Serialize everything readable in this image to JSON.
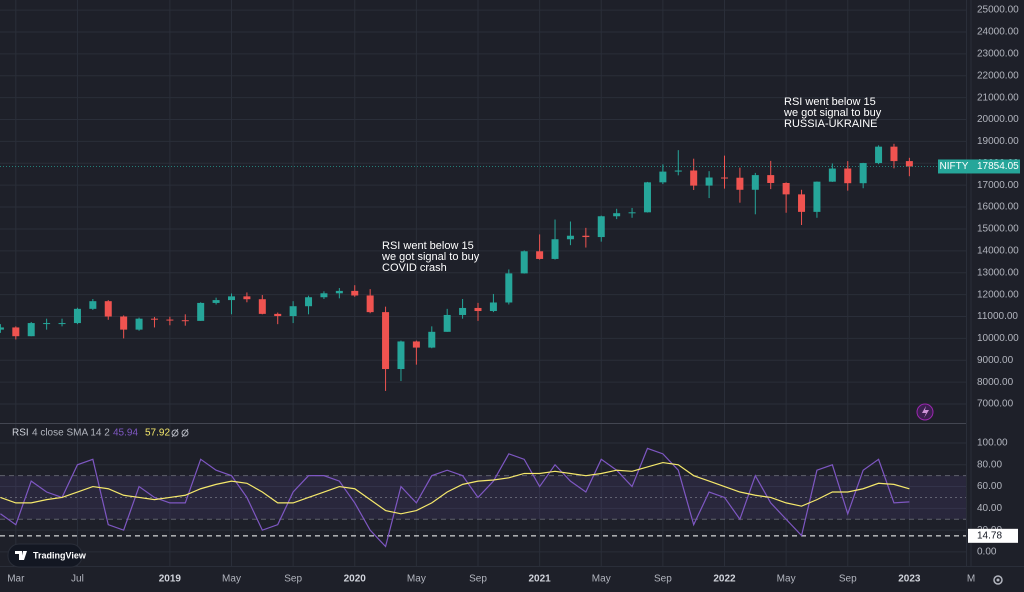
{
  "chart_data": {
    "type": "candlestick",
    "symbol": "NIFTY",
    "x": [
      "2018-02",
      "2018-03",
      "2018-04",
      "2018-05",
      "2018-06",
      "2018-07",
      "2018-08",
      "2018-09",
      "2018-10",
      "2018-11",
      "2018-12",
      "2019-01",
      "2019-02",
      "2019-03",
      "2019-04",
      "2019-05",
      "2019-06",
      "2019-07",
      "2019-08",
      "2019-09",
      "2019-10",
      "2019-11",
      "2019-12",
      "2020-01",
      "2020-02",
      "2020-03",
      "2020-04",
      "2020-05",
      "2020-06",
      "2020-07",
      "2020-08",
      "2020-09",
      "2020-10",
      "2020-11",
      "2020-12",
      "2021-01",
      "2021-02",
      "2021-03",
      "2021-04",
      "2021-05",
      "2021-06",
      "2021-07",
      "2021-08",
      "2021-09",
      "2021-10",
      "2021-11",
      "2021-12",
      "2022-01",
      "2022-02",
      "2022-03",
      "2022-04",
      "2022-05",
      "2022-06",
      "2022-07",
      "2022-08",
      "2022-09",
      "2022-10",
      "2022-11",
      "2022-12",
      "2023-01"
    ],
    "candles": [
      [
        10400,
        10650,
        10250,
        10500
      ],
      [
        10500,
        10550,
        9950,
        10100
      ],
      [
        10100,
        10750,
        10100,
        10700
      ],
      [
        10700,
        10900,
        10400,
        10700
      ],
      [
        10700,
        10900,
        10550,
        10700
      ],
      [
        10700,
        11400,
        10650,
        11350
      ],
      [
        11350,
        11800,
        11300,
        11700
      ],
      [
        11700,
        11750,
        10850,
        11000
      ],
      [
        11000,
        11050,
        10000,
        10400
      ],
      [
        10400,
        10950,
        10350,
        10900
      ],
      [
        10900,
        10980,
        10500,
        10860
      ],
      [
        10860,
        10990,
        10600,
        10830
      ],
      [
        10830,
        11100,
        10580,
        10800
      ],
      [
        10800,
        11650,
        10800,
        11620
      ],
      [
        11620,
        11860,
        11550,
        11750
      ],
      [
        11750,
        12050,
        11100,
        11920
      ],
      [
        11920,
        12100,
        11650,
        11790
      ],
      [
        11790,
        11980,
        11100,
        11120
      ],
      [
        11120,
        11180,
        10650,
        11020
      ],
      [
        11020,
        11700,
        10700,
        11470
      ],
      [
        11470,
        11950,
        11100,
        11880
      ],
      [
        11880,
        12150,
        11800,
        12060
      ],
      [
        12060,
        12300,
        11830,
        12170
      ],
      [
        12170,
        12430,
        11900,
        11960
      ],
      [
        11960,
        12250,
        11150,
        11200
      ],
      [
        11200,
        11450,
        7600,
        8600
      ],
      [
        8600,
        9900,
        8050,
        9860
      ],
      [
        9860,
        9900,
        8800,
        9580
      ],
      [
        9580,
        10550,
        9550,
        10300
      ],
      [
        10300,
        11350,
        10300,
        11070
      ],
      [
        11070,
        11800,
        10900,
        11390
      ],
      [
        11390,
        11620,
        10800,
        11250
      ],
      [
        11250,
        12030,
        11200,
        11640
      ],
      [
        11640,
        13150,
        11550,
        12970
      ],
      [
        12970,
        14020,
        12960,
        13980
      ],
      [
        13980,
        14750,
        13600,
        13630
      ],
      [
        13630,
        15430,
        13600,
        14530
      ],
      [
        14530,
        15340,
        14260,
        14690
      ],
      [
        14690,
        15050,
        14150,
        14630
      ],
      [
        14630,
        15610,
        14420,
        15580
      ],
      [
        15580,
        15920,
        15450,
        15720
      ],
      [
        15720,
        15960,
        15510,
        15760
      ],
      [
        15760,
        17150,
        15750,
        17130
      ],
      [
        17130,
        17950,
        17050,
        17620
      ],
      [
        17620,
        18600,
        17450,
        17670
      ],
      [
        17670,
        18210,
        16780,
        16980
      ],
      [
        16980,
        17640,
        16410,
        17350
      ],
      [
        17350,
        18350,
        16840,
        17340
      ],
      [
        17340,
        17800,
        16200,
        16790
      ],
      [
        16790,
        17560,
        15670,
        17460
      ],
      [
        17460,
        18110,
        16820,
        17100
      ],
      [
        17100,
        17130,
        15740,
        16580
      ],
      [
        16580,
        16790,
        15180,
        15780
      ],
      [
        15780,
        17170,
        15510,
        17160
      ],
      [
        17160,
        17990,
        17150,
        17760
      ],
      [
        17760,
        18100,
        16750,
        17090
      ],
      [
        17090,
        18020,
        16860,
        18010
      ],
      [
        18010,
        18820,
        17960,
        18760
      ],
      [
        18760,
        18890,
        17770,
        18100
      ],
      [
        18100,
        18250,
        17410,
        17854.05
      ]
    ],
    "up_color": "#26a69a",
    "down_color": "#ef5350",
    "xlim": [
      "2018-01",
      "2023-05"
    ],
    "xticks": [
      {
        "value": "2018-03",
        "label": "Mar"
      },
      {
        "value": "2018-07",
        "label": "Jul"
      },
      {
        "value": "2019-01",
        "label": "2019"
      },
      {
        "value": "2019-05",
        "label": "May"
      },
      {
        "value": "2019-09",
        "label": "Sep"
      },
      {
        "value": "2020-01",
        "label": "2020"
      },
      {
        "value": "2020-05",
        "label": "May"
      },
      {
        "value": "2020-09",
        "label": "Sep"
      },
      {
        "value": "2021-01",
        "label": "2021"
      },
      {
        "value": "2021-05",
        "label": "May"
      },
      {
        "value": "2021-09",
        "label": "Sep"
      },
      {
        "value": "2022-01",
        "label": "2022"
      },
      {
        "value": "2022-05",
        "label": "May"
      },
      {
        "value": "2022-09",
        "label": "Sep"
      },
      {
        "value": "2023-01",
        "label": "2023"
      },
      {
        "value": "2023-05",
        "label": "M"
      }
    ],
    "ylim": [
      6180,
      25460
    ],
    "yticks": [
      {
        "value": 7000,
        "label": "7000.00"
      },
      {
        "value": 8000,
        "label": "8000.00"
      },
      {
        "value": 9000,
        "label": "9000.00"
      },
      {
        "value": 10000,
        "label": "10000.00"
      },
      {
        "value": 11000,
        "label": "11000.00"
      },
      {
        "value": 12000,
        "label": "12000.00"
      },
      {
        "value": 13000,
        "label": "13000.00"
      },
      {
        "value": 14000,
        "label": "14000.00"
      },
      {
        "value": 15000,
        "label": "15000.00"
      },
      {
        "value": 16000,
        "label": "16000.00"
      },
      {
        "value": 17000,
        "label": "17000.00"
      },
      {
        "value": 18000,
        "label": "18000.00"
      },
      {
        "value": 19000,
        "label": "19000.00"
      },
      {
        "value": 20000,
        "label": "20000.00"
      },
      {
        "value": 21000,
        "label": "21000.00"
      },
      {
        "value": 22000,
        "label": "22000.00"
      },
      {
        "value": 23000,
        "label": "23000.00"
      },
      {
        "value": 24000,
        "label": "24000.00"
      },
      {
        "value": 25000,
        "label": "25000.00"
      }
    ],
    "grid": true,
    "annotations": [
      [
        "RSI went below 15",
        "we got signal to buy",
        "COVID crash"
      ],
      [
        "RSI went below 15",
        "we got signal to buy",
        "RUSSIA-UKRAINE"
      ]
    ],
    "indicator": {
      "type": "line",
      "name": "RSI",
      "params": "4 close SMA 14 2",
      "series": [
        {
          "color": "#7e57c2",
          "values": [
            35,
            25,
            65,
            55,
            50,
            80,
            85,
            25,
            20,
            60,
            50,
            45,
            45,
            85,
            75,
            70,
            50,
            20,
            25,
            55,
            70,
            70,
            65,
            45,
            20,
            5,
            60,
            45,
            70,
            75,
            70,
            50,
            65,
            90,
            85,
            60,
            80,
            65,
            55,
            85,
            75,
            60,
            95,
            90,
            75,
            25,
            55,
            50,
            30,
            70,
            45,
            30,
            15,
            75,
            80,
            35,
            75,
            85,
            45,
            45.94
          ]
        },
        {
          "color": "#f5e86b",
          "values": [
            50,
            45,
            45,
            48,
            50,
            55,
            60,
            58,
            52,
            50,
            48,
            50,
            52,
            58,
            62,
            65,
            63,
            55,
            45,
            45,
            50,
            55,
            60,
            58,
            48,
            38,
            35,
            38,
            45,
            55,
            62,
            65,
            66,
            68,
            72,
            72,
            74,
            72,
            70,
            72,
            75,
            74,
            78,
            82,
            80,
            70,
            65,
            60,
            55,
            52,
            50,
            45,
            42,
            48,
            55,
            55,
            58,
            63,
            62,
            57.92
          ]
        }
      ],
      "ylim": [
        -12,
        116.5
      ],
      "yticks": [
        {
          "value": 0,
          "label": "0.00"
        },
        {
          "value": 20,
          "label": "20.00"
        },
        {
          "value": 40,
          "label": "40.00"
        },
        {
          "value": 60,
          "label": "60.00"
        },
        {
          "value": 80,
          "label": "80.00"
        },
        {
          "value": 100,
          "label": "100.00"
        }
      ],
      "bands": [
        30,
        50,
        70
      ],
      "hline": 14.78
    }
  },
  "brand": "TradingView"
}
